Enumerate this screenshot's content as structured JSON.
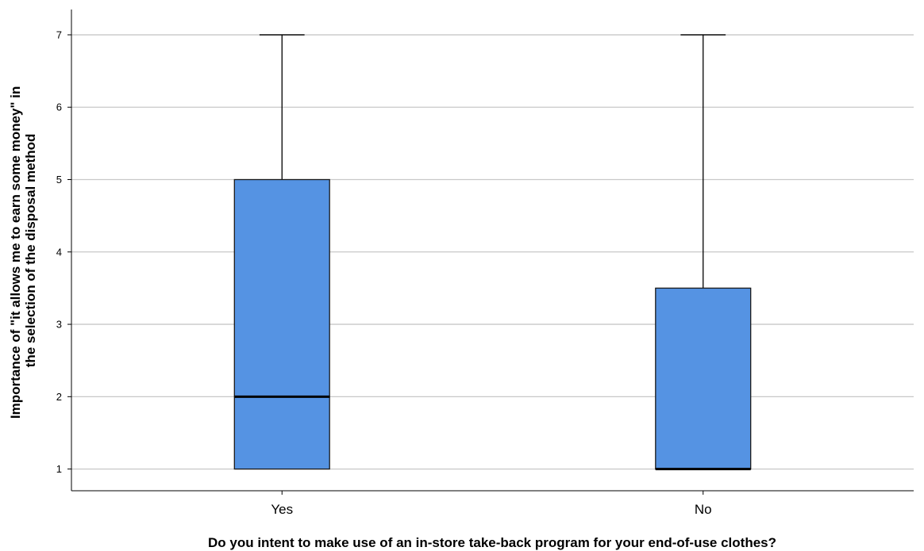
{
  "chart_data": {
    "type": "boxplot",
    "title": "",
    "xlabel": "Do you intent to make use of an in-store take-back program for your end-of-use clothes?",
    "ylabel_lines": [
      "Importance of \"it allows me to earn some money\" in",
      "the selection of the disposal method"
    ],
    "categories": [
      "Yes",
      "No"
    ],
    "ylim": [
      0.7,
      7.35
    ],
    "yticks": [
      1,
      2,
      3,
      4,
      5,
      6,
      7
    ],
    "grid": true,
    "legend": "none",
    "box_color": "#5593e3",
    "series": [
      {
        "category": "Yes",
        "min": 1,
        "q1": 1,
        "median": 2,
        "q3": 5,
        "max": 7
      },
      {
        "category": "No",
        "min": 1,
        "q1": 1,
        "median": 1,
        "q3": 3.5,
        "max": 7
      }
    ]
  }
}
